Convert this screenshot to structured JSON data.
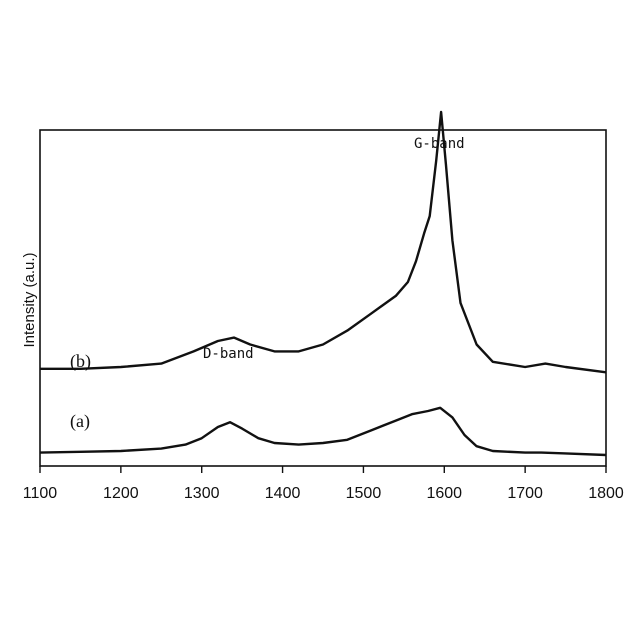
{
  "chart_data": {
    "type": "line",
    "title": "",
    "xlabel": "",
    "ylabel": "Intensity (a.u.)",
    "xlim": [
      1100,
      1800
    ],
    "x_ticks": [
      "1100",
      "1200",
      "1300",
      "1400",
      "1500",
      "1600",
      "1700",
      "1800"
    ],
    "y_ticks": [],
    "grid": false,
    "series": [
      {
        "name": "(b)",
        "x": [
          1100,
          1150,
          1200,
          1250,
          1290,
          1320,
          1340,
          1360,
          1390,
          1420,
          1450,
          1480,
          1510,
          1540,
          1555,
          1565,
          1575,
          1582,
          1590,
          1596,
          1602,
          1610,
          1620,
          1640,
          1660,
          1700,
          1725,
          1750,
          1800
        ],
        "y": [
          0.26,
          0.26,
          0.265,
          0.275,
          0.31,
          0.34,
          0.35,
          0.33,
          0.31,
          0.31,
          0.33,
          0.37,
          0.42,
          0.47,
          0.51,
          0.57,
          0.65,
          0.7,
          0.86,
          1.0,
          0.85,
          0.63,
          0.45,
          0.33,
          0.28,
          0.265,
          0.275,
          0.265,
          0.25
        ]
      },
      {
        "name": "(a)",
        "x": [
          1100,
          1150,
          1200,
          1250,
          1280,
          1300,
          1320,
          1335,
          1350,
          1370,
          1390,
          1420,
          1450,
          1480,
          1510,
          1540,
          1560,
          1580,
          1595,
          1610,
          1625,
          1640,
          1660,
          1700,
          1720,
          1750,
          1800
        ],
        "y": [
          0.04,
          0.045,
          0.05,
          0.065,
          0.09,
          0.13,
          0.2,
          0.23,
          0.19,
          0.13,
          0.1,
          0.09,
          0.1,
          0.12,
          0.18,
          0.24,
          0.28,
          0.3,
          0.32,
          0.26,
          0.15,
          0.08,
          0.05,
          0.04,
          0.04,
          0.035,
          0.025
        ]
      }
    ],
    "annotations": [
      {
        "text": "G-band",
        "x": 1596
      },
      {
        "text": "D-band",
        "x": 1340
      }
    ]
  }
}
